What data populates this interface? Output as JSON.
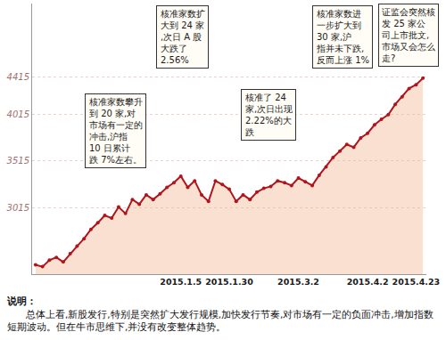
{
  "chart_data": {
    "type": "line",
    "color": "#b0141c",
    "marker": "circle",
    "categories": [
      null,
      null,
      null,
      null,
      null,
      null,
      null,
      null,
      null,
      null,
      null,
      null,
      null,
      null,
      null,
      null,
      null,
      null,
      null,
      null,
      null,
      "2015.1.5",
      null,
      null,
      null,
      null,
      null,
      null,
      "2015.1.30",
      null,
      null,
      null,
      null,
      null,
      null,
      null,
      null,
      null,
      "2015.3.2",
      null,
      null,
      null,
      null,
      null,
      null,
      null,
      null,
      null,
      "2015.4.2",
      null,
      null,
      null,
      null,
      null,
      null,
      "2015.4.23",
      null
    ],
    "values": [
      2400,
      2380,
      2450,
      2480,
      2430,
      2520,
      2600,
      2680,
      2780,
      2850,
      2930,
      2900,
      3020,
      2950,
      3100,
      3050,
      3150,
      3100,
      3160,
      3230,
      3280,
      3350,
      3230,
      3300,
      3150,
      3080,
      3300,
      3260,
      3210,
      3080,
      3150,
      3100,
      3180,
      3220,
      3240,
      3300,
      3280,
      3250,
      3330,
      3290,
      3250,
      3360,
      3450,
      3550,
      3620,
      3690,
      3660,
      3760,
      3810,
      3900,
      3960,
      4010,
      4120,
      4200,
      4290,
      4330,
      4400
    ],
    "ylim": [
      2300,
      5200
    ],
    "yticks": [
      3015,
      3515,
      4015,
      4415
    ],
    "grid": true,
    "annotations": [
      "核准家数攀升到 20 家,对市场有一定的冲击,沪指 10 日累计跌 7%左右。",
      "核准家数扩大到 24 家,次日 A 股大跌了 2.56%",
      "核准了 24 家,次日出现 2.22%的大跌",
      "核准家数进一步扩大到 30 家,沪指并未下跌,反而上涨 1%",
      "证监会突然核发 25 家公司上市批文,市场又会怎么走?"
    ],
    "note": {
      "title": "说明：",
      "text": "总体上看,新股发行,特别是突然扩大发行规模,加快发行节奏,对市场有一定的负面冲击,增加指数短期波动。但在牛市思维下,并没有改变整体趋势。"
    }
  }
}
